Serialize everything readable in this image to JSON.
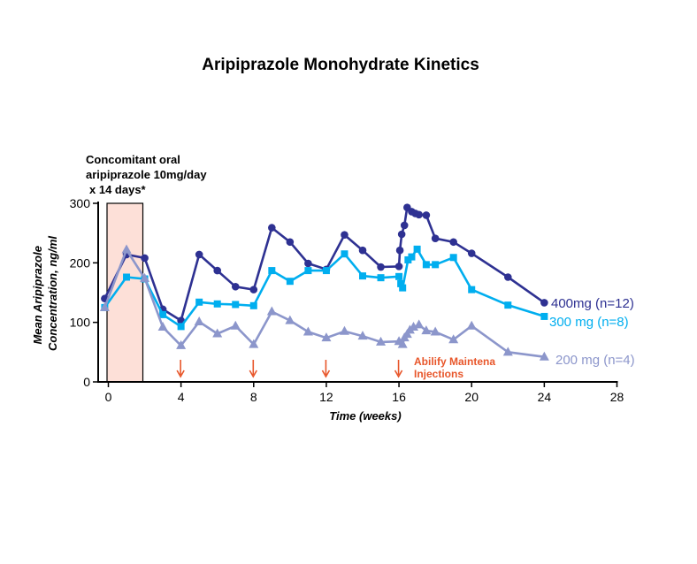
{
  "chart_data": {
    "type": "line",
    "title": "Aripiprazole Monohydrate Kinetics",
    "xlabel": "Time (weeks)",
    "ylabel": [
      "Mean Aripiprazole",
      "Concentration, ng/ml"
    ],
    "xlim": [
      0,
      28
    ],
    "ylim": [
      0,
      300
    ],
    "xticks": [
      0,
      4,
      8,
      12,
      16,
      20,
      24,
      28
    ],
    "yticks": [
      0,
      100,
      200,
      300
    ],
    "grid": false,
    "shaded_region": {
      "x": [
        0,
        1.9
      ],
      "color": "#fde0d8",
      "label": [
        "Concomitant oral",
        "aripiprazole 10mg/day",
        "x 14 days*"
      ]
    },
    "annotation": {
      "label": [
        "Abilify Maintena",
        "Injections"
      ],
      "color": "#e8562a",
      "arrow_x": [
        4,
        8,
        12,
        16
      ]
    },
    "series": [
      {
        "name": "400mg (n=12)",
        "marker": "circle",
        "color": "#2e3192",
        "points": [
          [
            -0.2,
            140
          ],
          [
            1,
            214
          ],
          [
            2,
            208
          ],
          [
            3,
            122
          ],
          [
            4,
            103
          ],
          [
            5,
            214
          ],
          [
            6,
            187
          ],
          [
            7,
            160
          ],
          [
            8,
            155
          ],
          [
            9,
            259
          ],
          [
            10,
            235
          ],
          [
            11,
            199
          ],
          [
            12,
            189
          ],
          [
            13,
            247
          ],
          [
            14,
            221
          ],
          [
            15,
            193
          ],
          [
            16,
            194
          ],
          [
            16.05,
            221
          ],
          [
            16.15,
            248
          ],
          [
            16.3,
            263
          ],
          [
            16.45,
            293
          ],
          [
            16.7,
            286
          ],
          [
            16.9,
            283
          ],
          [
            17.1,
            281
          ],
          [
            17.5,
            280
          ],
          [
            18,
            241
          ],
          [
            19,
            235
          ],
          [
            20,
            216
          ],
          [
            22,
            176
          ],
          [
            24,
            133
          ]
        ]
      },
      {
        "name": "300 mg (n=8)",
        "marker": "square",
        "color": "#00aeef",
        "points": [
          [
            -0.2,
            125
          ],
          [
            1,
            176
          ],
          [
            2,
            173
          ],
          [
            3,
            113
          ],
          [
            4,
            93
          ],
          [
            5,
            134
          ],
          [
            6,
            131
          ],
          [
            7,
            130
          ],
          [
            8,
            128
          ],
          [
            9,
            187
          ],
          [
            10,
            169
          ],
          [
            11,
            187
          ],
          [
            12,
            187
          ],
          [
            13,
            215
          ],
          [
            14,
            178
          ],
          [
            15,
            175
          ],
          [
            16,
            177
          ],
          [
            16.1,
            165
          ],
          [
            16.2,
            158
          ],
          [
            16.5,
            205
          ],
          [
            16.7,
            210
          ],
          [
            17,
            223
          ],
          [
            17.5,
            197
          ],
          [
            18,
            197
          ],
          [
            19,
            209
          ],
          [
            20,
            155
          ],
          [
            22,
            129
          ],
          [
            24,
            110
          ]
        ]
      },
      {
        "name": "200 mg (n=4)",
        "marker": "triangle",
        "color": "#8c96cb",
        "points": [
          [
            -0.2,
            125
          ],
          [
            1,
            222
          ],
          [
            2,
            174
          ],
          [
            3,
            92
          ],
          [
            4,
            61
          ],
          [
            5,
            101
          ],
          [
            6,
            81
          ],
          [
            7,
            94
          ],
          [
            8,
            63
          ],
          [
            9,
            118
          ],
          [
            10,
            103
          ],
          [
            11,
            84
          ],
          [
            12,
            74
          ],
          [
            13,
            85
          ],
          [
            14,
            77
          ],
          [
            15,
            67
          ],
          [
            16,
            68
          ],
          [
            16.2,
            63
          ],
          [
            16.3,
            74
          ],
          [
            16.45,
            80
          ],
          [
            16.6,
            87
          ],
          [
            16.8,
            92
          ],
          [
            17.1,
            96
          ],
          [
            17.5,
            86
          ],
          [
            18,
            84
          ],
          [
            19,
            71
          ],
          [
            20,
            94
          ],
          [
            22,
            50
          ],
          [
            24,
            42
          ]
        ]
      }
    ]
  }
}
